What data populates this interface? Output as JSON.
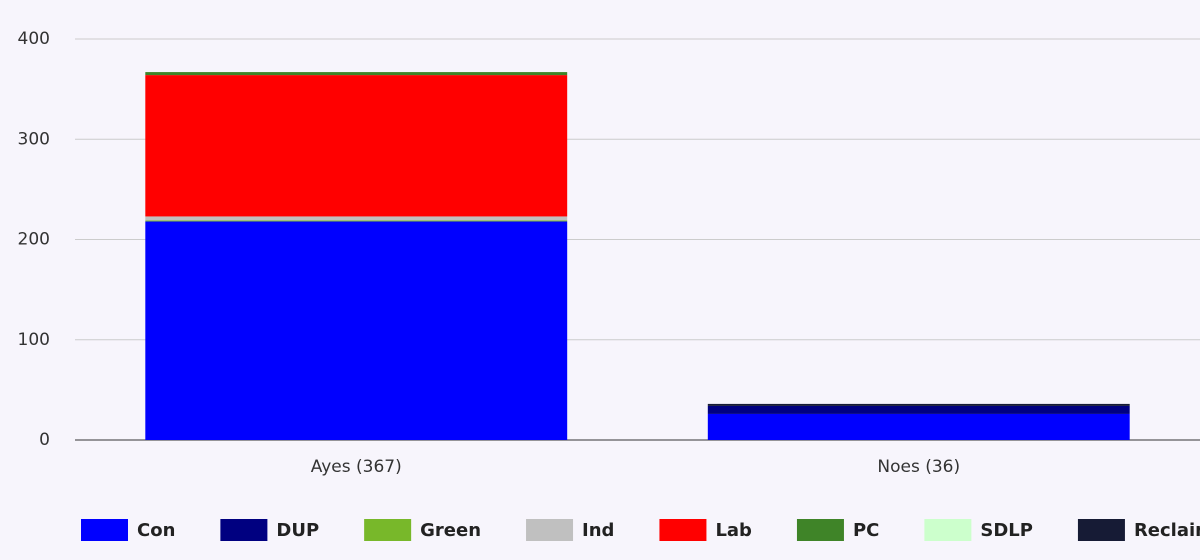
{
  "chart_data": {
    "type": "stacked_bar",
    "categories": [
      "Ayes (367)",
      "Noes (36)"
    ],
    "series": [
      {
        "name": "Con",
        "color": "#0000ff",
        "values": [
          218,
          26
        ]
      },
      {
        "name": "DUP",
        "color": "#000080",
        "values": [
          0,
          8
        ]
      },
      {
        "name": "Green",
        "color": "#78b82a",
        "values": [
          1,
          0
        ]
      },
      {
        "name": "Ind",
        "color": "#c0c0c0",
        "values": [
          4,
          0
        ]
      },
      {
        "name": "Lab",
        "color": "#ff0000",
        "values": [
          141,
          0
        ]
      },
      {
        "name": "PC",
        "color": "#3f8428",
        "values": [
          3,
          0
        ]
      },
      {
        "name": "SDLP",
        "color": "#ccffcc",
        "values": [
          0,
          0
        ]
      },
      {
        "name": "Reclaim",
        "color": "#161b35",
        "values": [
          0,
          2
        ]
      }
    ],
    "ylim": [
      0,
      400
    ],
    "yticks": [
      0,
      100,
      200,
      300,
      400
    ],
    "grid": true
  }
}
